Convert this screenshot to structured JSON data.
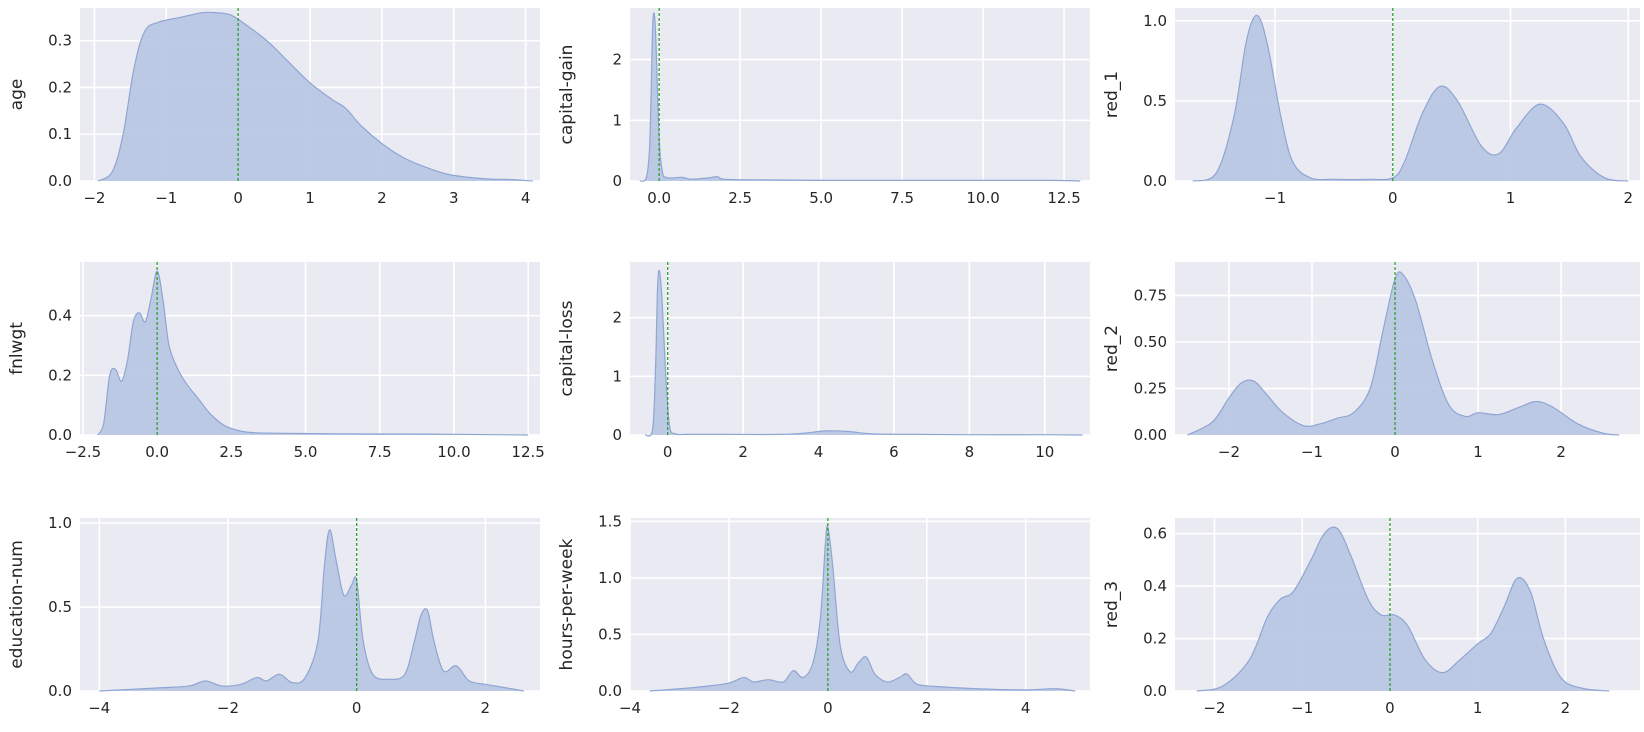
{
  "style": {
    "panel_bg": "#eaeaf2",
    "grid_color": "#ffffff",
    "fill_color": "#b9c7e4",
    "line_color": "#8fa5d3",
    "zero_line_color": "#2ca02c",
    "text_color": "#262626"
  },
  "chart_data": [
    {
      "type": "area",
      "ylabel": "age",
      "xlim": [
        -2.2,
        4.2
      ],
      "ylim": [
        0,
        0.37
      ],
      "xticks": [
        -2,
        -1,
        0,
        1,
        2,
        3,
        4
      ],
      "xtick_labels": [
        "−2",
        "−1",
        "0",
        "1",
        "2",
        "3",
        "4"
      ],
      "yticks": [
        0,
        0.1,
        0.2,
        0.3
      ],
      "ytick_labels": [
        "0.0",
        "0.1",
        "0.2",
        "0.3"
      ],
      "vline_x": 0,
      "x": [
        -1.95,
        -1.75,
        -1.6,
        -1.45,
        -1.3,
        -1.1,
        -0.8,
        -0.5,
        -0.3,
        -0.1,
        0.1,
        0.4,
        0.7,
        1.0,
        1.3,
        1.5,
        1.7,
        2.0,
        2.3,
        2.6,
        2.9,
        3.2,
        3.5,
        3.8,
        4.1
      ],
      "y": [
        0.0,
        0.02,
        0.1,
        0.24,
        0.32,
        0.34,
        0.35,
        0.36,
        0.36,
        0.355,
        0.335,
        0.3,
        0.255,
        0.21,
        0.175,
        0.155,
        0.12,
        0.08,
        0.05,
        0.03,
        0.015,
        0.008,
        0.004,
        0.003,
        0.0
      ]
    },
    {
      "type": "area",
      "ylabel": "capital-gain",
      "xlim": [
        -0.9,
        13.3
      ],
      "ylim": [
        0,
        2.85
      ],
      "xticks": [
        0,
        2.5,
        5,
        7.5,
        10,
        12.5
      ],
      "xtick_labels": [
        "0.0",
        "2.5",
        "5.0",
        "7.5",
        "10.0",
        "12.5"
      ],
      "yticks": [
        0,
        1,
        2
      ],
      "ytick_labels": [
        "0",
        "1",
        "2"
      ],
      "vline_x": 0,
      "x": [
        -0.6,
        -0.4,
        -0.3,
        -0.25,
        -0.2,
        -0.15,
        -0.1,
        0.0,
        0.1,
        0.2,
        0.4,
        0.7,
        1.0,
        1.5,
        1.8,
        2.0,
        3.0,
        5.0,
        8.0,
        12.0,
        13.0
      ],
      "y": [
        0.0,
        0.05,
        0.5,
        1.4,
        2.55,
        2.75,
        2.3,
        0.7,
        0.15,
        0.06,
        0.05,
        0.06,
        0.03,
        0.05,
        0.07,
        0.03,
        0.02,
        0.01,
        0.01,
        0.01,
        0.0
      ]
    },
    {
      "type": "area",
      "ylabel": "red_1",
      "xlim": [
        -1.85,
        2.1
      ],
      "ylim": [
        0,
        1.08
      ],
      "xticks": [
        -1,
        0,
        1,
        2
      ],
      "xtick_labels": [
        "−1",
        "0",
        "1",
        "2"
      ],
      "yticks": [
        0,
        0.5,
        1.0
      ],
      "ytick_labels": [
        "0.0",
        "0.5",
        "1.0"
      ],
      "vline_x": 0,
      "x": [
        -1.7,
        -1.5,
        -1.35,
        -1.25,
        -1.18,
        -1.12,
        -1.05,
        -0.95,
        -0.85,
        -0.7,
        -0.5,
        -0.2,
        0.0,
        0.1,
        0.25,
        0.4,
        0.55,
        0.75,
        0.9,
        1.05,
        1.25,
        1.45,
        1.6,
        1.8,
        2.0
      ],
      "y": [
        0.0,
        0.05,
        0.4,
        0.85,
        1.02,
        1.0,
        0.8,
        0.4,
        0.12,
        0.02,
        0.01,
        0.01,
        0.02,
        0.12,
        0.42,
        0.59,
        0.5,
        0.22,
        0.17,
        0.33,
        0.48,
        0.36,
        0.15,
        0.02,
        0.0
      ]
    },
    {
      "type": "area",
      "ylabel": "fnlwgt",
      "xlim": [
        -2.6,
        12.9
      ],
      "ylim": [
        0,
        0.58
      ],
      "xticks": [
        -2.5,
        0,
        2.5,
        5,
        7.5,
        10,
        12.5
      ],
      "xtick_labels": [
        "−2.5",
        "0.0",
        "2.5",
        "5.0",
        "7.5",
        "10.0",
        "12.5"
      ],
      "yticks": [
        0,
        0.2,
        0.4
      ],
      "ytick_labels": [
        "0.0",
        "0.2",
        "0.4"
      ],
      "vline_x": 0,
      "x": [
        -2.0,
        -1.8,
        -1.6,
        -1.4,
        -1.2,
        -1.0,
        -0.8,
        -0.6,
        -0.4,
        -0.2,
        0.0,
        0.2,
        0.4,
        0.7,
        1.0,
        1.4,
        1.8,
        2.3,
        3.0,
        4.0,
        6.0,
        9.0,
        12.5
      ],
      "y": [
        0.0,
        0.04,
        0.2,
        0.22,
        0.18,
        0.25,
        0.38,
        0.41,
        0.38,
        0.46,
        0.55,
        0.45,
        0.3,
        0.22,
        0.17,
        0.12,
        0.07,
        0.03,
        0.01,
        0.006,
        0.004,
        0.003,
        0.0
      ]
    },
    {
      "type": "area",
      "ylabel": "capital-loss",
      "xlim": [
        -1.0,
        11.2
      ],
      "ylim": [
        0,
        2.95
      ],
      "xticks": [
        0,
        2,
        4,
        6,
        8,
        10
      ],
      "xtick_labels": [
        "0",
        "2",
        "4",
        "6",
        "8",
        "10"
      ],
      "yticks": [
        0,
        1,
        2
      ],
      "ytick_labels": [
        "0",
        "1",
        "2"
      ],
      "vline_x": 0,
      "x": [
        -0.6,
        -0.4,
        -0.32,
        -0.27,
        -0.22,
        -0.15,
        -0.05,
        0.05,
        0.2,
        0.5,
        1.5,
        3.0,
        3.6,
        4.2,
        4.8,
        5.4,
        6.5,
        8.0,
        10.0,
        11.0
      ],
      "y": [
        0.0,
        0.1,
        1.2,
        2.5,
        2.8,
        2.3,
        1.0,
        0.15,
        0.02,
        0.01,
        0.01,
        0.01,
        0.03,
        0.07,
        0.06,
        0.02,
        0.01,
        0.005,
        0.005,
        0.0
      ]
    },
    {
      "type": "area",
      "ylabel": "red_2",
      "xlim": [
        -2.65,
        2.95
      ],
      "ylim": [
        0,
        0.93
      ],
      "xticks": [
        -2,
        -1,
        0,
        1,
        2
      ],
      "xtick_labels": [
        "−2",
        "−1",
        "0",
        "1",
        "2"
      ],
      "yticks": [
        0,
        0.25,
        0.5,
        0.75
      ],
      "ytick_labels": [
        "0.00",
        "0.25",
        "0.50",
        "0.75"
      ],
      "vline_x": 0,
      "x": [
        -2.5,
        -2.2,
        -2.0,
        -1.85,
        -1.7,
        -1.55,
        -1.35,
        -1.1,
        -0.9,
        -0.7,
        -0.5,
        -0.3,
        -0.15,
        0.0,
        0.1,
        0.25,
        0.45,
        0.65,
        0.85,
        1.0,
        1.25,
        1.5,
        1.7,
        1.9,
        2.2,
        2.5,
        2.7
      ],
      "y": [
        0.0,
        0.07,
        0.2,
        0.28,
        0.29,
        0.22,
        0.12,
        0.05,
        0.06,
        0.09,
        0.12,
        0.25,
        0.55,
        0.84,
        0.86,
        0.72,
        0.4,
        0.16,
        0.1,
        0.12,
        0.11,
        0.15,
        0.18,
        0.15,
        0.06,
        0.01,
        0.0
      ]
    },
    {
      "type": "area",
      "ylabel": "education-num",
      "xlim": [
        -4.3,
        2.85
      ],
      "ylim": [
        0,
        1.03
      ],
      "xticks": [
        -4,
        -2,
        0,
        2
      ],
      "xtick_labels": [
        "−4",
        "−2",
        "0",
        "2"
      ],
      "yticks": [
        0,
        0.5,
        1.0
      ],
      "ytick_labels": [
        "0.0",
        "0.5",
        "1.0"
      ],
      "vline_x": 0,
      "x": [
        -4.0,
        -3.5,
        -3.0,
        -2.6,
        -2.35,
        -2.1,
        -1.8,
        -1.55,
        -1.4,
        -1.2,
        -1.0,
        -0.8,
        -0.6,
        -0.5,
        -0.42,
        -0.32,
        -0.2,
        -0.08,
        0.0,
        0.1,
        0.25,
        0.5,
        0.75,
        0.9,
        1.0,
        1.1,
        1.2,
        1.35,
        1.55,
        1.75,
        2.0,
        2.3,
        2.6
      ],
      "y": [
        0.0,
        0.01,
        0.02,
        0.03,
        0.06,
        0.03,
        0.04,
        0.08,
        0.06,
        0.1,
        0.05,
        0.08,
        0.3,
        0.75,
        0.96,
        0.78,
        0.57,
        0.63,
        0.66,
        0.3,
        0.1,
        0.07,
        0.1,
        0.3,
        0.45,
        0.48,
        0.3,
        0.12,
        0.15,
        0.06,
        0.04,
        0.02,
        0.0
      ]
    },
    {
      "type": "area",
      "ylabel": "hours-per-week",
      "xlim": [
        -4.0,
        5.3
      ],
      "ylim": [
        0,
        1.53
      ],
      "xticks": [
        -4,
        -2,
        0,
        2,
        4
      ],
      "xtick_labels": [
        "−4",
        "−2",
        "0",
        "2",
        "4"
      ],
      "yticks": [
        0,
        0.5,
        1.0,
        1.5
      ],
      "ytick_labels": [
        "0.0",
        "0.5",
        "1.0",
        "1.5"
      ],
      "vline_x": 0,
      "x": [
        -3.6,
        -3.0,
        -2.5,
        -2.0,
        -1.7,
        -1.5,
        -1.2,
        -0.9,
        -0.7,
        -0.5,
        -0.3,
        -0.15,
        -0.05,
        0.0,
        0.1,
        0.25,
        0.45,
        0.62,
        0.78,
        0.95,
        1.2,
        1.45,
        1.6,
        1.8,
        2.2,
        3.0,
        4.0,
        4.6,
        5.0
      ],
      "y": [
        0.0,
        0.02,
        0.04,
        0.07,
        0.12,
        0.08,
        0.1,
        0.08,
        0.18,
        0.12,
        0.25,
        0.65,
        1.3,
        1.45,
        1.1,
        0.4,
        0.17,
        0.25,
        0.3,
        0.15,
        0.08,
        0.12,
        0.15,
        0.06,
        0.04,
        0.02,
        0.01,
        0.02,
        0.0
      ]
    },
    {
      "type": "area",
      "ylabel": "red_3",
      "xlim": [
        -2.45,
        2.85
      ],
      "ylim": [
        0,
        0.66
      ],
      "xticks": [
        -2,
        -1,
        0,
        1,
        2
      ],
      "xtick_labels": [
        "−2",
        "−1",
        "0",
        "1",
        "2"
      ],
      "yticks": [
        0,
        0.2,
        0.4,
        0.6
      ],
      "ytick_labels": [
        "0.0",
        "0.2",
        "0.4",
        "0.6"
      ],
      "vline_x": 0,
      "x": [
        -2.2,
        -1.9,
        -1.6,
        -1.4,
        -1.25,
        -1.1,
        -0.9,
        -0.75,
        -0.6,
        -0.45,
        -0.25,
        -0.1,
        0.05,
        0.2,
        0.4,
        0.6,
        0.8,
        1.0,
        1.15,
        1.3,
        1.45,
        1.6,
        1.75,
        1.95,
        2.2,
        2.5
      ],
      "y": [
        0.0,
        0.02,
        0.12,
        0.28,
        0.35,
        0.38,
        0.5,
        0.6,
        0.62,
        0.52,
        0.35,
        0.29,
        0.29,
        0.25,
        0.12,
        0.07,
        0.12,
        0.18,
        0.22,
        0.32,
        0.43,
        0.38,
        0.2,
        0.05,
        0.01,
        0.0
      ]
    }
  ]
}
